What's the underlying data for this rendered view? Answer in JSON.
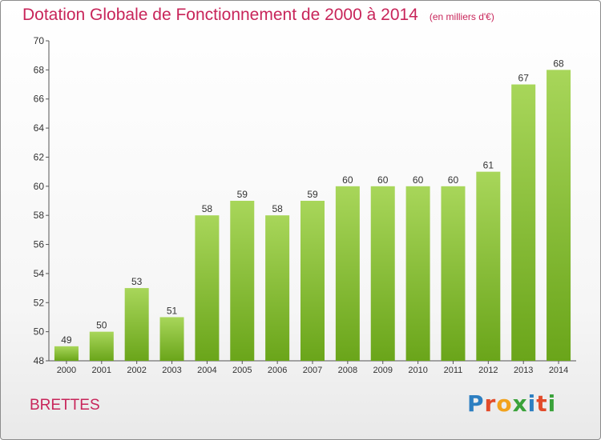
{
  "header": {
    "title": "Dotation Globale de Fonctionnement de 2000 à 2014",
    "subtitle": "(en milliers d'€)"
  },
  "footer": {
    "commune": "BRETTES",
    "logo_text": "Proxiti",
    "logo_colors": [
      "#2d7fc1",
      "#e24b2a",
      "#f2a21c",
      "#3aa23a",
      "#2d7fc1",
      "#e24b2a",
      "#3aa23a"
    ]
  },
  "colors": {
    "bar_light": "#a8d65a",
    "bar_dark": "#6aa51a",
    "axis": "#555555",
    "grid": "#dddddd",
    "text": "#333333",
    "title": "#c8255a"
  },
  "chart_data": {
    "type": "bar",
    "categories": [
      "2000",
      "2001",
      "2002",
      "2003",
      "2004",
      "2005",
      "2006",
      "2007",
      "2008",
      "2009",
      "2010",
      "2011",
      "2012",
      "2013",
      "2014"
    ],
    "values": [
      49,
      50,
      53,
      51,
      58,
      59,
      58,
      59,
      60,
      60,
      60,
      60,
      61,
      67,
      68
    ],
    "data_labels": [
      "49",
      "50",
      "53",
      "51",
      "58",
      "59",
      "58",
      "59",
      "60",
      "60",
      "60",
      "60",
      "61",
      "67",
      "68"
    ],
    "ylim": [
      48,
      70
    ],
    "yticks": [
      "48",
      "50",
      "52",
      "54",
      "56",
      "58",
      "60",
      "62",
      "64",
      "66",
      "68",
      "70"
    ],
    "xlabel": "",
    "ylabel": "",
    "grid": false
  }
}
